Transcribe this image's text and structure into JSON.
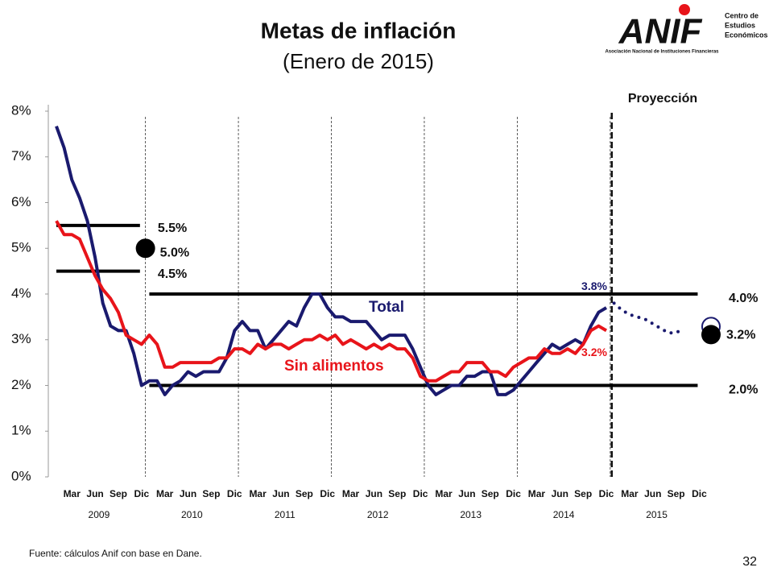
{
  "chart_data": {
    "type": "line",
    "title": "Metas de inflación",
    "subtitle": "(Enero de 2015)",
    "categories": [
      null,
      null,
      "Mar",
      null,
      null,
      "Jun",
      null,
      null,
      "Sep",
      null,
      null,
      "Dic",
      null,
      null,
      "Mar",
      null,
      null,
      "Jun",
      null,
      null,
      "Sep",
      null,
      null,
      "Dic",
      null,
      null,
      "Mar",
      null,
      null,
      "Jun",
      null,
      null,
      "Sep",
      null,
      null,
      "Dic",
      null,
      null,
      "Mar",
      null,
      null,
      "Jun",
      null,
      null,
      "Sep",
      null,
      null,
      "Dic",
      null,
      null,
      "Mar",
      null,
      null,
      "Jun",
      null,
      null,
      "Sep",
      null,
      null,
      "Dic",
      null,
      null,
      "Mar",
      null,
      null,
      "Jun",
      null,
      null,
      "Sep",
      null,
      null,
      "Dic",
      null,
      null,
      "Mar",
      null,
      null,
      "Jun",
      null,
      null,
      "Sep",
      null,
      null,
      "Dic"
    ],
    "year_labels": [
      "2009",
      "2010",
      "2011",
      "2012",
      "2013",
      "2014",
      "2015"
    ],
    "series": [
      {
        "name": "Total",
        "color": "#1a1a6e",
        "style": "solid",
        "values": [
          7.67,
          7.2,
          6.5,
          6.1,
          5.6,
          4.8,
          3.8,
          3.3,
          3.2,
          3.2,
          2.7,
          2.0,
          2.1,
          2.1,
          1.8,
          2.0,
          2.1,
          2.3,
          2.2,
          2.3,
          2.3,
          2.3,
          2.6,
          3.2,
          3.4,
          3.2,
          3.2,
          2.8,
          3.0,
          3.2,
          3.4,
          3.3,
          3.7,
          4.0,
          4.0,
          3.7,
          3.5,
          3.5,
          3.4,
          3.4,
          3.4,
          3.2,
          3.0,
          3.1,
          3.1,
          3.1,
          2.8,
          2.4,
          2.0,
          1.8,
          1.9,
          2.0,
          2.0,
          2.2,
          2.2,
          2.3,
          2.3,
          1.8,
          1.8,
          1.9,
          2.1,
          2.3,
          2.5,
          2.7,
          2.9,
          2.8,
          2.9,
          3.0,
          2.9,
          3.3,
          3.6,
          3.7,
          null,
          null,
          null,
          null,
          null,
          null,
          null,
          null,
          null,
          null,
          null,
          null
        ]
      },
      {
        "name": "Sin alimentos",
        "color": "#e8141a",
        "style": "solid",
        "values": [
          5.6,
          5.3,
          5.3,
          5.2,
          4.8,
          4.4,
          4.1,
          3.9,
          3.6,
          3.1,
          3.0,
          2.9,
          3.1,
          2.9,
          2.4,
          2.4,
          2.5,
          2.5,
          2.5,
          2.5,
          2.5,
          2.6,
          2.6,
          2.8,
          2.8,
          2.7,
          2.9,
          2.8,
          2.9,
          2.9,
          2.8,
          2.9,
          3.0,
          3.0,
          3.1,
          3.0,
          3.1,
          2.9,
          3.0,
          2.9,
          2.8,
          2.9,
          2.8,
          2.9,
          2.8,
          2.8,
          2.6,
          2.2,
          2.1,
          2.1,
          2.2,
          2.3,
          2.3,
          2.5,
          2.5,
          2.5,
          2.3,
          2.3,
          2.2,
          2.4,
          2.5,
          2.6,
          2.6,
          2.8,
          2.7,
          2.7,
          2.8,
          2.7,
          2.9,
          3.2,
          3.3,
          3.2,
          null,
          null,
          null,
          null,
          null,
          null,
          null,
          null,
          null,
          null,
          null,
          null
        ]
      },
      {
        "color": "#1a1a6e",
        "style": "dotted",
        "values": [
          null,
          null,
          null,
          null,
          null,
          null,
          null,
          null,
          null,
          null,
          null,
          null,
          null,
          null,
          null,
          null,
          null,
          null,
          null,
          null,
          null,
          null,
          null,
          null,
          null,
          null,
          null,
          null,
          null,
          null,
          null,
          null,
          null,
          null,
          null,
          null,
          null,
          null,
          null,
          null,
          null,
          null,
          null,
          null,
          null,
          null,
          null,
          null,
          null,
          null,
          null,
          null,
          null,
          null,
          null,
          null,
          null,
          null,
          null,
          null,
          null,
          null,
          null,
          null,
          null,
          null,
          null,
          null,
          null,
          null,
          null,
          null,
          3.8,
          3.65,
          3.55,
          3.5,
          3.45,
          3.35,
          3.25,
          3.15,
          3.15,
          3.25,
          null,
          null
        ]
      }
    ],
    "ylim": [
      0,
      8
    ],
    "yticks": [
      {
        "value": 0,
        "label": "0%"
      },
      {
        "value": 1,
        "label": "1%"
      },
      {
        "value": 2,
        "label": "2%"
      },
      {
        "value": 3,
        "label": "3%"
      },
      {
        "value": 4,
        "label": "4%"
      },
      {
        "value": 5,
        "label": "5%"
      },
      {
        "value": 6,
        "label": "6%"
      },
      {
        "value": 7,
        "label": "7%"
      },
      {
        "value": 8,
        "label": "8%"
      }
    ],
    "target_lines": [
      {
        "value": 5.5,
        "label": "5.5%"
      },
      {
        "value": 4.5,
        "label": "4.5%"
      },
      {
        "value": 4.0,
        "label": "4.0%"
      },
      {
        "value": 2.0,
        "label": "2.0%"
      }
    ],
    "target_points": [
      {
        "value": 5.0,
        "label": "5.0%"
      },
      {
        "value": 3.2,
        "label": "3.2%"
      }
    ],
    "annotations": [
      {
        "text": "3.8%",
        "value": 3.8,
        "color": "#1a1a6e"
      },
      {
        "text": "3.2%",
        "value": 3.2,
        "color": "#e8141a"
      }
    ],
    "projection_label": "Proyección"
  },
  "source": "Fuente: cálculos Anif con base en Dane.",
  "page_number": "32",
  "logo": {
    "name": "ANIF",
    "line1": "Centro de",
    "line2": "Estudios",
    "line3": "Económicos",
    "tagline": "Asociación Nacional de Instituciones Financieras"
  }
}
